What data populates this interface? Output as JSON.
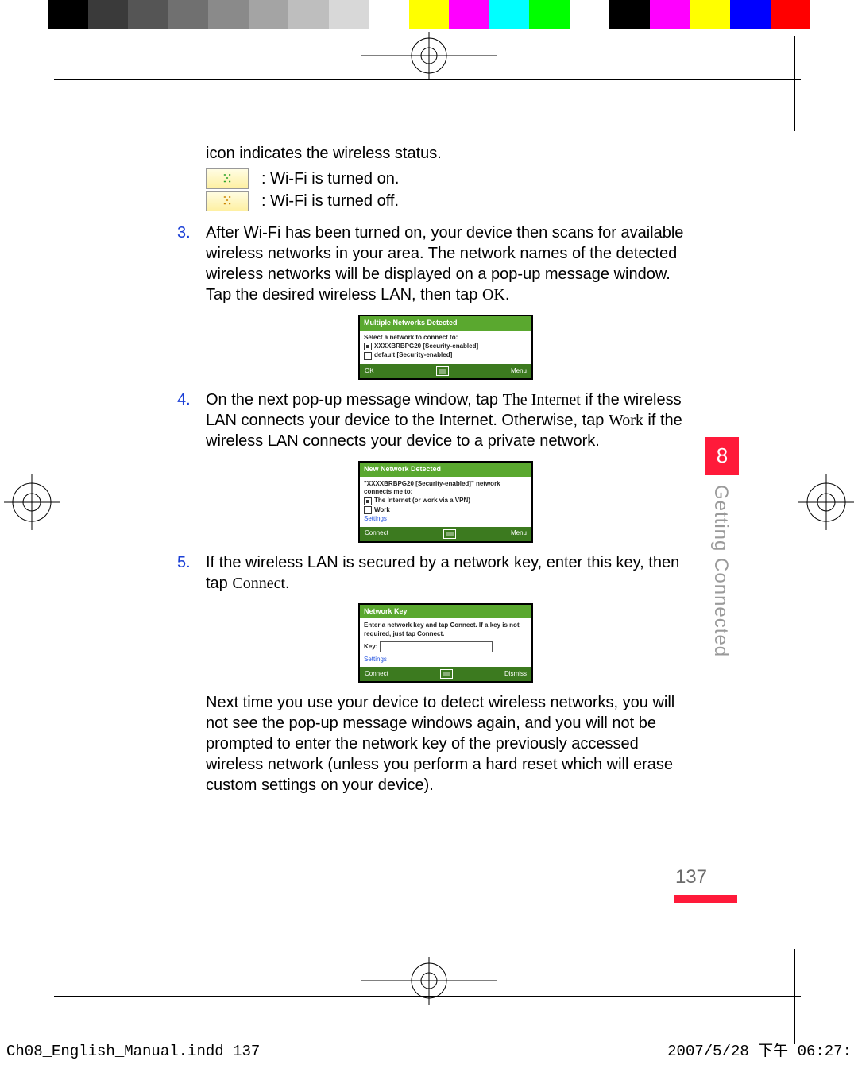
{
  "colorbar": [
    "#000000",
    "#3a3a3a",
    "#555555",
    "#707070",
    "#8a8a8a",
    "#a4a4a4",
    "#bebebe",
    "#d8d8d8",
    "#ffffff",
    "#ffff00",
    "#ff00ff",
    "#00ffff",
    "#00ff00",
    "#ffffff",
    "#000000",
    "#ff00ff",
    "#ffff00",
    "#0000ff",
    "#ff0000"
  ],
  "intro": "icon indicates the wireless status.",
  "wifi_on_label": ": Wi-Fi is turned on.",
  "wifi_off_label": ": Wi-Fi is turned off.",
  "steps": {
    "s3a": "After Wi-Fi has been turned on, your device then scans for available wireless networks in your area. The network names of the detected wireless networks will be displayed on a pop-up message window. Tap the desired wireless LAN, then tap ",
    "s3b": "OK",
    "s3c": ".",
    "s4a": "On the next pop-up message window, tap ",
    "s4b": "The Internet",
    "s4c": " if the wireless LAN connects your device to the Internet. Otherwise, tap ",
    "s4d": "Work",
    "s4e": " if the wireless LAN connects your device to a private network.",
    "s5a": "If the wireless LAN is secured by a network key, enter this key, then tap ",
    "s5b": "Connect",
    "s5c": "."
  },
  "shot1": {
    "title": "Multiple Networks Detected",
    "prompt": "Select a network to connect to:",
    "opt1": "XXXXBRBPG20 [Security-enabled]",
    "opt2": "default [Security-enabled]",
    "left": "OK",
    "right": "Menu"
  },
  "shot2": {
    "title": "New Network Detected",
    "prompt": "\"XXXXBRBPG20 [Security-enabled]\" network connects me to:",
    "opt1": "The Internet (or work via a VPN)",
    "opt2": "Work",
    "link": "Settings",
    "left": "Connect",
    "right": "Menu"
  },
  "shot3": {
    "title": "Network Key",
    "prompt": "Enter a network key and tap Connect. If a key is not required, just tap Connect.",
    "keylabel": "Key:",
    "link": "Settings",
    "left": "Connect",
    "right": "Dismiss"
  },
  "closing": "Next time you use your device to detect wireless networks, you will not see the pop-up message windows again, and you will not be prompted to enter the network key of the previously accessed wireless network (unless you perform a hard reset which will erase custom settings on your device).",
  "chapter_num": "8",
  "chapter_title": "Getting Connected",
  "page_number": "137",
  "imprint_left": "Ch08_English_Manual.indd   137",
  "imprint_right": "2007/5/28   下午 06:27:"
}
